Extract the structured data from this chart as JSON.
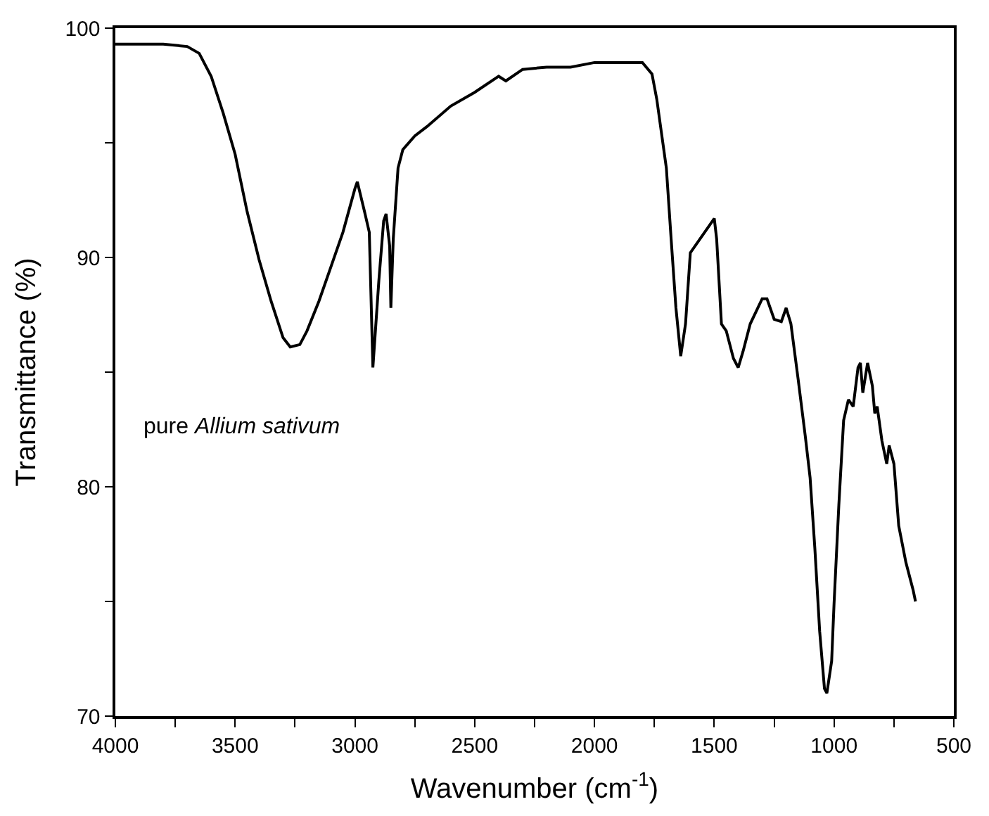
{
  "chart_data": {
    "type": "line",
    "xlabel": "Wavenumber (cm$^{-1}$)",
    "ylabel": "Transmittance (%)",
    "annotations": [
      "pure Allium sativum"
    ],
    "x": [
      4000,
      3800,
      3700,
      3650,
      3600,
      3550,
      3500,
      3450,
      3400,
      3350,
      3300,
      3270,
      3230,
      3200,
      3150,
      3100,
      3050,
      3000,
      2990,
      2960,
      2940,
      2925,
      2900,
      2880,
      2870,
      2855,
      2850,
      2840,
      2820,
      2800,
      2750,
      2700,
      2600,
      2500,
      2400,
      2370,
      2300,
      2200,
      2100,
      2000,
      1900,
      1800,
      1760,
      1740,
      1720,
      1700,
      1680,
      1660,
      1640,
      1620,
      1600,
      1560,
      1520,
      1500,
      1490,
      1470,
      1450,
      1420,
      1400,
      1380,
      1350,
      1300,
      1280,
      1250,
      1220,
      1200,
      1180,
      1150,
      1120,
      1100,
      1080,
      1060,
      1040,
      1030,
      1010,
      1000,
      980,
      960,
      940,
      920,
      900,
      890,
      880,
      860,
      840,
      830,
      820,
      800,
      780,
      770,
      750,
      730,
      700,
      670,
      660
    ],
    "series": [
      {
        "color": "#000000",
        "values": [
          99.3,
          99.3,
          99.2,
          98.9,
          97.9,
          96.3,
          94.5,
          92.0,
          89.9,
          88.1,
          86.5,
          86.1,
          86.2,
          86.8,
          88.1,
          89.6,
          91.1,
          93.0,
          93.3,
          92.0,
          91.1,
          85.2,
          89.0,
          91.6,
          91.9,
          90.5,
          87.8,
          90.8,
          93.9,
          94.7,
          95.3,
          95.7,
          96.6,
          97.2,
          97.9,
          97.7,
          98.2,
          98.3,
          98.3,
          98.5,
          98.5,
          98.5,
          98.0,
          96.9,
          95.4,
          93.9,
          90.8,
          87.8,
          85.7,
          87.1,
          90.2,
          90.8,
          91.4,
          91.7,
          90.8,
          87.1,
          86.8,
          85.6,
          85.2,
          85.9,
          87.1,
          88.2,
          88.2,
          87.3,
          87.2,
          87.8,
          87.1,
          84.7,
          82.2,
          80.4,
          77.3,
          73.7,
          71.2,
          71.0,
          72.4,
          74.9,
          79.2,
          82.9,
          83.8,
          83.5,
          85.2,
          85.4,
          84.1,
          85.4,
          84.4,
          83.2,
          83.5,
          82.0,
          81.0,
          81.8,
          81.0,
          78.3,
          76.7,
          75.5,
          75.0
        ]
      }
    ],
    "xlim": [
      4000,
      500
    ],
    "xticks": [
      4000,
      {
        "value": 3750,
        "label": null
      },
      3500,
      {
        "value": 3250,
        "label": null
      },
      3000,
      {
        "value": 2750,
        "label": null
      },
      2500,
      {
        "value": 2250,
        "label": null
      },
      2000,
      {
        "value": 1750,
        "label": null
      },
      1500,
      {
        "value": 1250,
        "label": null
      },
      1000,
      {
        "value": 750,
        "label": null
      },
      500
    ],
    "ylim": [
      70,
      100
    ],
    "yticks": [
      70,
      {
        "value": 75,
        "label": null
      },
      80,
      {
        "value": 85,
        "label": null
      },
      90,
      {
        "value": 95,
        "label": null
      },
      100
    ],
    "marker": "none",
    "line_style": "solid"
  }
}
